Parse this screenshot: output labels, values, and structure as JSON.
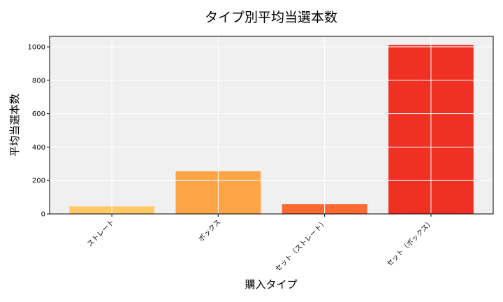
{
  "chart_data": {
    "type": "bar",
    "title": "タイプ別平均当選本数",
    "xlabel": "購入タイプ",
    "ylabel": "平均当選本数",
    "categories": [
      "ストレート",
      "ボックス",
      "セット（ストレート）",
      "セット（ボックス）"
    ],
    "values": [
      45,
      255,
      58,
      1012
    ],
    "colors": [
      "#fec966",
      "#fda446",
      "#fc6a32",
      "#ef3124"
    ],
    "ylim": [
      0,
      1063
    ],
    "yticks": [
      0,
      200,
      400,
      600,
      800,
      1000
    ],
    "grid": true
  }
}
